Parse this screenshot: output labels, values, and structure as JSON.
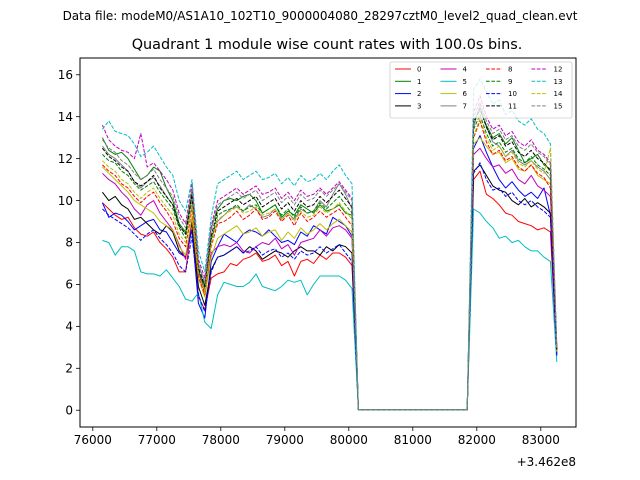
{
  "figure": {
    "suptitle": "Data file: modeM0/AS1A10_102T10_9000004080_28297cztM0_level2_quad_clean.evt"
  },
  "chart_data": {
    "type": "line",
    "title": "Quadrant 1 module wise count rates with 100.0s bins.",
    "xlabel": "",
    "ylabel": "",
    "x_offset_label": "+3.462e8",
    "xlim": [
      75800,
      83550
    ],
    "ylim": [
      -0.8,
      16.8
    ],
    "xticks": [
      76000,
      77000,
      78000,
      79000,
      80000,
      81000,
      82000,
      83000
    ],
    "xtick_labels": [
      "76000",
      "77000",
      "78000",
      "79000",
      "80000",
      "81000",
      "82000",
      "83000"
    ],
    "yticks": [
      0,
      2,
      4,
      6,
      8,
      10,
      12,
      14,
      16
    ],
    "ytick_labels": [
      "0",
      "2",
      "4",
      "6",
      "8",
      "10",
      "12",
      "14",
      "16"
    ],
    "legend_position": "upper right",
    "legend_columns": 4,
    "gap": [
      80150,
      81850
    ],
    "x": [
      76150,
      76250,
      76350,
      76450,
      76550,
      76650,
      76750,
      76850,
      76950,
      77050,
      77150,
      77250,
      77350,
      77450,
      77550,
      77650,
      77750,
      77850,
      77950,
      78050,
      78150,
      78250,
      78350,
      78450,
      78550,
      78650,
      78750,
      78850,
      78950,
      79050,
      79150,
      79250,
      79350,
      79450,
      79550,
      79650,
      79750,
      79850,
      79950,
      80050,
      80150,
      81850,
      81950,
      82050,
      82150,
      82250,
      82350,
      82450,
      82550,
      82650,
      82750,
      82850,
      82950,
      83050,
      83150,
      83250
    ],
    "series": [
      {
        "name": "0",
        "color": "#ff0000",
        "dash": "solid",
        "values": [
          9.9,
          9.6,
          9.3,
          9.1,
          9.2,
          8.7,
          8.4,
          8.3,
          8.5,
          8.0,
          7.7,
          7.3,
          6.6,
          6.6,
          9.0,
          5.4,
          4.8,
          6.3,
          6.5,
          6.6,
          7.0,
          6.9,
          7.2,
          7.3,
          7.5,
          7.1,
          7.2,
          7.4,
          6.9,
          7.1,
          6.4,
          7.1,
          7.2,
          7.0,
          7.4,
          7.2,
          7.5,
          7.5,
          7.3,
          6.9,
          0.02,
          0.02,
          11.0,
          11.4,
          10.3,
          10.1,
          9.8,
          9.4,
          9.3,
          9.0,
          8.9,
          8.8,
          8.6,
          8.7,
          8.5,
          2.6
        ]
      },
      {
        "name": "1",
        "color": "#008000",
        "dash": "solid",
        "values": [
          13.0,
          12.4,
          12.2,
          12.3,
          12.0,
          11.5,
          11.0,
          11.2,
          11.6,
          11.4,
          10.6,
          10.0,
          8.9,
          8.5,
          10.4,
          6.6,
          5.9,
          8.7,
          9.6,
          10.0,
          10.1,
          10.0,
          10.2,
          10.3,
          10.0,
          9.4,
          9.6,
          9.8,
          9.2,
          9.5,
          9.3,
          9.8,
          9.6,
          9.4,
          9.8,
          9.5,
          9.6,
          9.8,
          9.4,
          9.3,
          0.02,
          0.02,
          13.8,
          14.3,
          13.6,
          13.0,
          13.2,
          12.7,
          13.0,
          12.4,
          11.8,
          12.0,
          12.2,
          11.7,
          11.5,
          2.8
        ]
      },
      {
        "name": "2",
        "color": "#0000ff",
        "dash": "solid",
        "values": [
          9.9,
          9.2,
          9.4,
          9.3,
          9.0,
          8.6,
          8.8,
          9.0,
          9.1,
          8.6,
          8.5,
          8.0,
          7.5,
          7.3,
          8.6,
          5.1,
          4.4,
          7.1,
          7.8,
          8.4,
          8.2,
          8.0,
          8.4,
          8.6,
          8.5,
          8.3,
          8.6,
          8.3,
          8.0,
          8.1,
          7.9,
          8.5,
          8.3,
          8.8,
          8.6,
          8.4,
          9.2,
          9.0,
          8.8,
          8.3,
          0.02,
          0.02,
          12.5,
          13.1,
          12.3,
          11.6,
          11.0,
          10.6,
          10.9,
          10.5,
          10.2,
          10.4,
          10.1,
          10.6,
          9.3,
          2.7
        ]
      },
      {
        "name": "3",
        "color": "#000000",
        "dash": "solid",
        "values": [
          10.4,
          10.0,
          10.2,
          9.8,
          9.6,
          9.1,
          9.2,
          8.9,
          8.6,
          8.4,
          8.8,
          8.5,
          7.6,
          7.3,
          9.0,
          5.9,
          5.0,
          6.7,
          7.3,
          7.4,
          7.6,
          7.8,
          7.5,
          7.8,
          7.6,
          7.2,
          7.4,
          7.6,
          7.5,
          7.3,
          7.6,
          7.8,
          7.6,
          7.6,
          7.4,
          7.8,
          7.6,
          7.9,
          7.8,
          7.5,
          0.02,
          0.02,
          11.4,
          11.7,
          11.2,
          10.7,
          10.5,
          10.4,
          10.0,
          9.8,
          10.1,
          9.7,
          9.9,
          9.7,
          9.4,
          2.8
        ]
      },
      {
        "name": "4",
        "color": "#c000c0",
        "dash": "solid",
        "values": [
          11.3,
          11.0,
          10.8,
          10.4,
          10.1,
          9.6,
          9.3,
          9.8,
          10.0,
          9.4,
          9.0,
          8.6,
          7.9,
          7.2,
          9.2,
          6.6,
          5.6,
          7.5,
          7.8,
          7.9,
          7.8,
          8.0,
          7.6,
          7.5,
          7.8,
          8.0,
          7.9,
          8.2,
          7.7,
          7.9,
          7.4,
          8.0,
          8.1,
          8.2,
          8.6,
          8.3,
          8.7,
          8.8,
          8.6,
          8.2,
          0.02,
          0.02,
          12.2,
          12.5,
          12.0,
          11.6,
          11.7,
          11.3,
          11.5,
          11.0,
          10.8,
          11.2,
          10.7,
          10.5,
          10.2,
          2.9
        ]
      },
      {
        "name": "5",
        "color": "#00bfbf",
        "dash": "solid",
        "values": [
          8.1,
          8.0,
          7.4,
          7.8,
          7.8,
          7.6,
          6.6,
          6.5,
          6.5,
          6.4,
          6.7,
          6.3,
          5.9,
          5.3,
          5.2,
          5.6,
          4.2,
          3.9,
          5.5,
          6.1,
          6.0,
          5.9,
          5.9,
          6.1,
          6.5,
          5.9,
          5.8,
          5.7,
          5.9,
          6.2,
          6.1,
          6.2,
          5.5,
          6.0,
          6.4,
          6.4,
          6.4,
          6.4,
          6.2,
          5.8,
          0.02,
          0.02,
          9.6,
          9.4,
          9.0,
          8.7,
          8.2,
          8.3,
          8.0,
          8.1,
          7.8,
          7.6,
          7.6,
          7.3,
          7.1,
          2.3
        ]
      },
      {
        "name": "6",
        "color": "#bfbf00",
        "dash": "solid",
        "values": [
          11.6,
          11.3,
          11.0,
          10.7,
          10.4,
          10.0,
          9.8,
          9.6,
          9.4,
          9.0,
          8.8,
          8.6,
          7.8,
          7.4,
          9.2,
          6.3,
          5.4,
          7.3,
          8.2,
          8.4,
          8.6,
          8.8,
          8.4,
          8.5,
          8.7,
          8.3,
          8.5,
          8.6,
          8.1,
          8.5,
          8.2,
          8.7,
          8.4,
          8.6,
          8.9,
          8.6,
          8.9,
          9.1,
          8.8,
          8.5,
          0.02,
          0.02,
          12.7,
          13.0,
          12.6,
          12.2,
          12.3,
          11.8,
          12.0,
          11.5,
          11.4,
          11.7,
          11.2,
          11.0,
          10.8,
          2.8
        ]
      },
      {
        "name": "7",
        "color": "#808080",
        "dash": "solid",
        "values": [
          12.6,
          12.2,
          12.0,
          11.7,
          11.4,
          10.9,
          10.6,
          10.9,
          11.1,
          10.7,
          10.2,
          9.8,
          8.8,
          8.4,
          10.2,
          7.0,
          6.0,
          8.2,
          9.0,
          9.3,
          9.6,
          9.7,
          9.5,
          9.8,
          9.6,
          9.2,
          9.3,
          9.6,
          9.1,
          9.4,
          9.1,
          9.6,
          9.4,
          9.5,
          10.0,
          9.7,
          10.3,
          10.8,
          10.3,
          9.6,
          0.02,
          0.02,
          13.5,
          14.6,
          13.5,
          12.8,
          12.6,
          12.1,
          12.4,
          11.9,
          11.7,
          11.9,
          11.6,
          11.4,
          11.0,
          2.9
        ]
      },
      {
        "name": "8",
        "color": "#ff0000",
        "dash": "dashed",
        "values": [
          11.7,
          11.4,
          11.2,
          10.8,
          10.6,
          10.2,
          9.9,
          10.2,
          10.4,
          9.9,
          9.5,
          9.0,
          8.2,
          7.8,
          9.6,
          6.4,
          5.5,
          7.8,
          8.9,
          9.0,
          9.2,
          9.5,
          9.1,
          9.3,
          9.6,
          9.1,
          9.2,
          9.5,
          9.0,
          9.3,
          8.8,
          9.4,
          9.0,
          9.2,
          9.5,
          9.2,
          9.4,
          9.6,
          9.2,
          8.8,
          0.02,
          0.02,
          13.0,
          13.8,
          12.8,
          12.2,
          12.4,
          11.9,
          12.1,
          11.6,
          11.4,
          11.7,
          11.3,
          11.1,
          10.6,
          2.8
        ]
      },
      {
        "name": "9",
        "color": "#008000",
        "dash": "dashed",
        "values": [
          12.2,
          11.9,
          11.8,
          11.4,
          11.2,
          10.8,
          10.5,
          10.7,
          10.9,
          10.4,
          10.0,
          9.6,
          8.7,
          8.2,
          9.9,
          6.7,
          5.8,
          8.1,
          9.3,
          9.5,
          9.6,
          9.8,
          9.5,
          9.7,
          9.8,
          9.4,
          9.6,
          9.8,
          9.3,
          9.6,
          9.2,
          9.7,
          9.4,
          9.5,
          9.9,
          9.6,
          9.9,
          10.2,
          9.8,
          9.4,
          0.02,
          0.02,
          13.4,
          14.1,
          13.2,
          12.6,
          12.8,
          12.3,
          12.5,
          12.0,
          11.8,
          12.1,
          11.7,
          11.5,
          11.2,
          2.9
        ]
      },
      {
        "name": "10",
        "color": "#0000ff",
        "dash": "dashed",
        "values": [
          9.6,
          9.3,
          9.1,
          8.9,
          8.7,
          8.4,
          8.1,
          8.4,
          8.6,
          8.2,
          7.9,
          7.5,
          6.9,
          6.6,
          8.3,
          5.5,
          4.7,
          6.6,
          7.3,
          7.4,
          7.6,
          7.8,
          7.5,
          7.6,
          7.8,
          7.4,
          7.6,
          7.7,
          7.3,
          7.5,
          7.2,
          7.6,
          7.4,
          7.5,
          7.8,
          7.5,
          7.7,
          7.9,
          7.5,
          7.1,
          0.02,
          0.02,
          11.3,
          11.8,
          11.0,
          10.5,
          10.6,
          10.2,
          10.4,
          10.0,
          9.8,
          10.0,
          9.7,
          9.5,
          9.2,
          2.6
        ]
      },
      {
        "name": "11",
        "color": "#000000",
        "dash": "dashed",
        "values": [
          12.5,
          12.1,
          11.9,
          11.6,
          11.4,
          10.9,
          10.7,
          10.9,
          11.2,
          10.6,
          10.2,
          9.8,
          8.8,
          8.4,
          10.3,
          6.8,
          5.9,
          8.3,
          9.5,
          9.7,
          9.9,
          10.1,
          9.8,
          10.0,
          10.2,
          9.7,
          9.9,
          10.1,
          9.6,
          9.9,
          9.5,
          10.0,
          9.7,
          9.8,
          10.2,
          9.9,
          10.2,
          10.5,
          10.1,
          9.7,
          0.02,
          0.02,
          13.7,
          14.4,
          13.5,
          12.9,
          13.1,
          12.6,
          12.8,
          12.3,
          12.1,
          12.4,
          12.0,
          11.8,
          11.4,
          2.9
        ]
      },
      {
        "name": "12",
        "color": "#c000c0",
        "dash": "dashed",
        "values": [
          13.6,
          12.9,
          12.6,
          12.4,
          12.3,
          12.0,
          13.2,
          11.6,
          11.8,
          11.4,
          11.0,
          10.5,
          9.4,
          8.9,
          10.8,
          7.2,
          6.3,
          8.8,
          10.0,
          10.2,
          10.4,
          10.6,
          10.3,
          10.5,
          10.7,
          10.3,
          10.4,
          10.6,
          10.1,
          10.4,
          10.0,
          10.5,
          10.2,
          10.3,
          10.6,
          10.3,
          10.6,
          10.9,
          10.5,
          10.1,
          0.02,
          0.02,
          14.2,
          15.0,
          14.0,
          13.4,
          13.6,
          13.1,
          13.3,
          12.8,
          12.6,
          12.9,
          12.4,
          12.2,
          11.8,
          3.0
        ]
      },
      {
        "name": "13",
        "color": "#00bfbf",
        "dash": "dashed",
        "values": [
          13.4,
          13.8,
          13.3,
          13.2,
          13.1,
          12.7,
          12.1,
          12.3,
          12.6,
          12.1,
          11.6,
          11.2,
          10.0,
          9.5,
          11.0,
          7.6,
          6.6,
          9.2,
          10.8,
          11.0,
          11.2,
          11.4,
          11.0,
          11.2,
          11.4,
          11.0,
          11.1,
          11.3,
          10.8,
          11.1,
          10.7,
          11.2,
          10.9,
          11.0,
          11.3,
          11.0,
          11.4,
          11.7,
          11.2,
          10.8,
          0.02,
          0.02,
          15.3,
          15.8,
          15.2,
          14.6,
          14.8,
          14.1,
          14.3,
          13.8,
          13.6,
          13.9,
          13.4,
          13.2,
          12.7,
          3.1
        ]
      },
      {
        "name": "14",
        "color": "#bfbf00",
        "dash": "dashed",
        "values": [
          11.9,
          11.6,
          11.4,
          11.0,
          10.8,
          10.4,
          10.1,
          10.4,
          10.6,
          10.1,
          9.7,
          9.3,
          8.4,
          8.0,
          9.8,
          6.5,
          5.6,
          7.9,
          9.1,
          9.3,
          9.5,
          9.7,
          9.4,
          9.5,
          9.7,
          9.3,
          9.4,
          9.6,
          9.1,
          9.4,
          9.0,
          9.5,
          9.2,
          9.3,
          9.7,
          9.4,
          9.6,
          9.9,
          9.5,
          9.1,
          0.02,
          0.02,
          13.1,
          13.9,
          13.0,
          12.4,
          12.6,
          12.1,
          12.3,
          11.8,
          11.6,
          11.9,
          11.5,
          11.3,
          12.5,
          2.8
        ]
      },
      {
        "name": "15",
        "color": "#808080",
        "dash": "dashed",
        "values": [
          12.9,
          12.5,
          12.3,
          11.9,
          11.7,
          11.3,
          11.0,
          11.2,
          11.5,
          11.0,
          10.6,
          10.2,
          9.2,
          8.7,
          10.6,
          7.0,
          6.1,
          8.6,
          9.8,
          10.0,
          10.2,
          10.4,
          10.1,
          10.3,
          10.5,
          10.0,
          10.2,
          10.4,
          9.9,
          10.2,
          9.8,
          10.3,
          10.0,
          10.1,
          10.5,
          10.2,
          10.5,
          10.8,
          10.4,
          10.0,
          0.02,
          0.02,
          14.0,
          14.7,
          13.8,
          13.2,
          13.4,
          12.9,
          13.1,
          12.6,
          12.4,
          12.7,
          12.3,
          12.1,
          11.7,
          3.0
        ]
      }
    ]
  }
}
